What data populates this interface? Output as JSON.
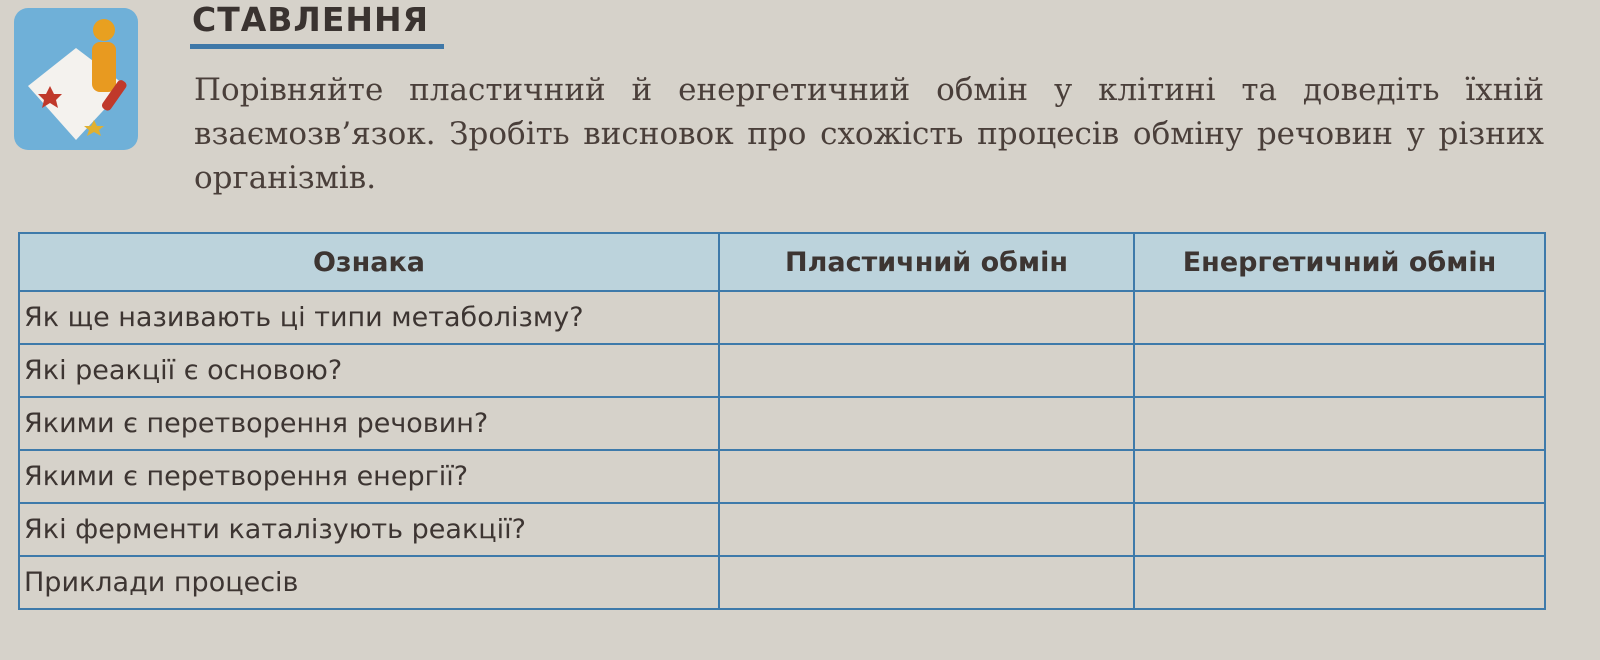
{
  "section_title": "СТАВЛЕННЯ",
  "task_text": "Порівняйте пластичний й енергетичний обмін у клітині та доведіть їхній взаємозв’язок. Зробіть висновок про схожість процесів обміну речовин у різних організмів.",
  "icon": "task-figure-icon",
  "colors": {
    "accent": "#3e7aaa",
    "header_bg": "#bcd3dc",
    "icon_bg": "#6fb0d8"
  },
  "table": {
    "headers": [
      "Ознака",
      "Пластичний обмін",
      "Енергетичний обмін"
    ],
    "rows": [
      "Як ще називають ці типи метаболізму?",
      "Які реакції є основою?",
      "Якими є перетворення речовин?",
      "Якими є перетворення енергії?",
      "Які ферменти каталізують реакції?",
      "Приклади процесів"
    ]
  }
}
